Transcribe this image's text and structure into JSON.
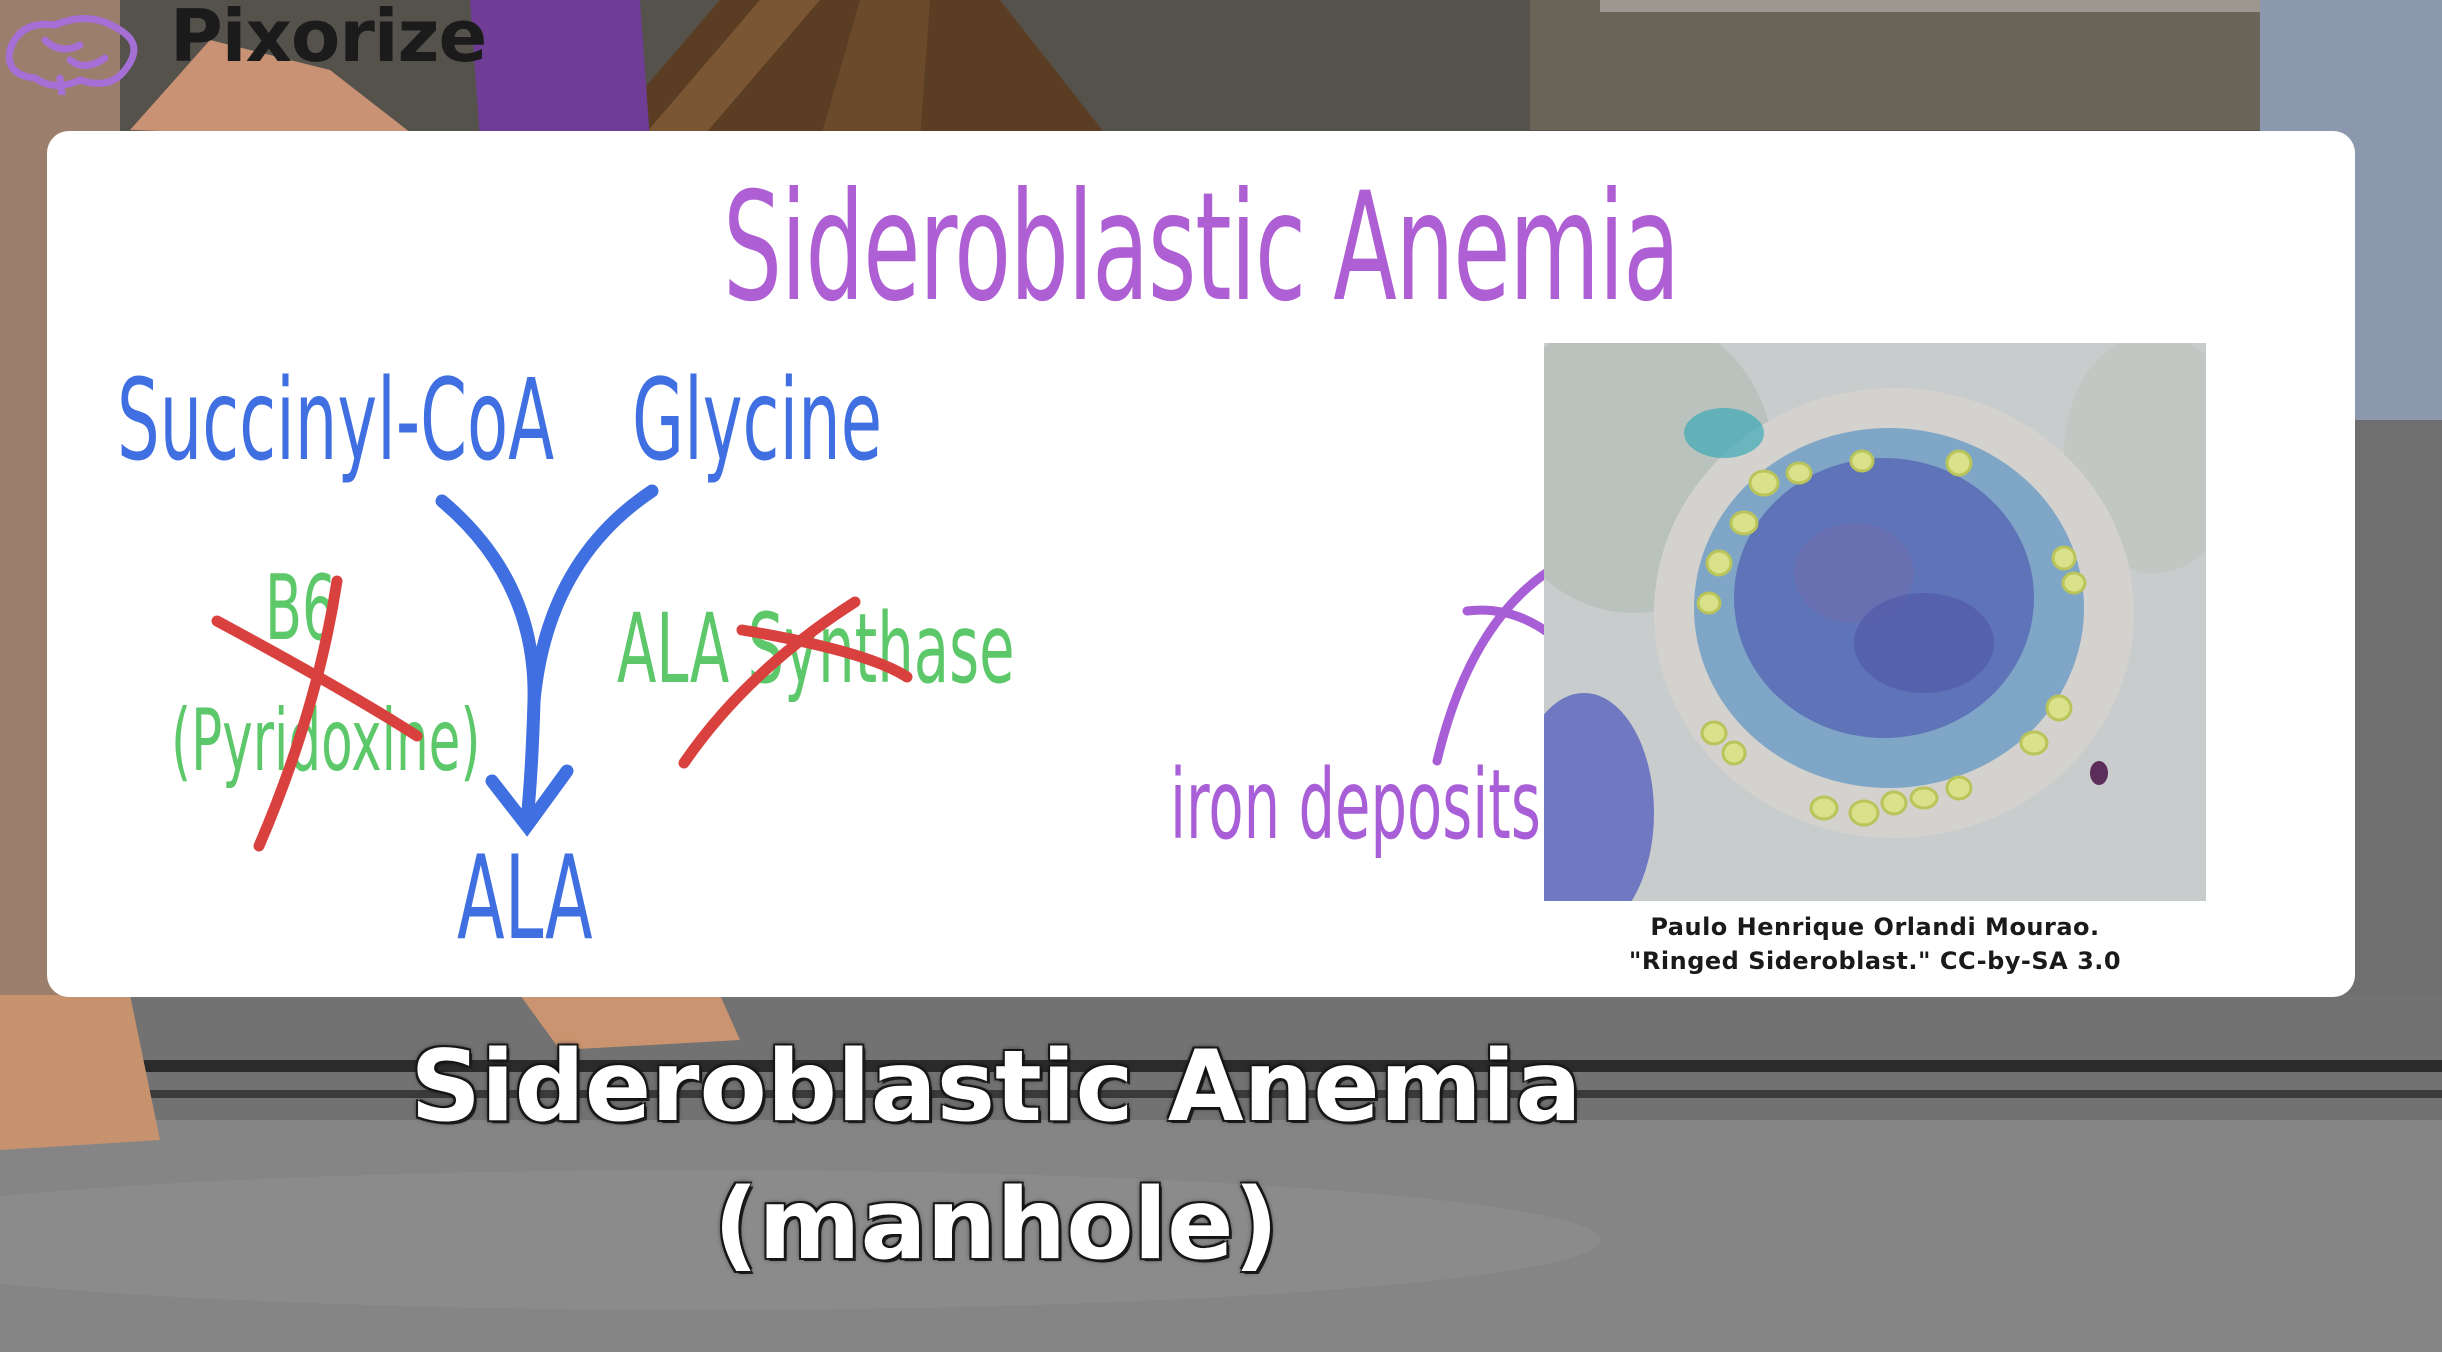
{
  "brand": {
    "name": "Pixorize"
  },
  "card": {
    "title": "Sideroblastic Anemia",
    "diagram": {
      "substrate_1": "Succinyl-CoA",
      "substrate_2": "Glycine",
      "cofactor_line1": "B6",
      "cofactor_line2": "(Pyridoxine)",
      "enzyme": "ALA Synthase",
      "product": "ALA",
      "annotation": "iron deposits"
    },
    "image_credit_line1": "Paulo Henrique Orlandi Mourao.",
    "image_credit_line2": "\"Ringed Sideroblast.\" CC-by-SA 3.0"
  },
  "caption": {
    "line1": "Sideroblastic Anemia",
    "line2": "(manhole)"
  },
  "colors": {
    "title_purple": "#ae5fd3",
    "pathway_blue": "#3f6fe0",
    "cofactor_green": "#5cc86a",
    "cross_red": "#d9413e"
  }
}
